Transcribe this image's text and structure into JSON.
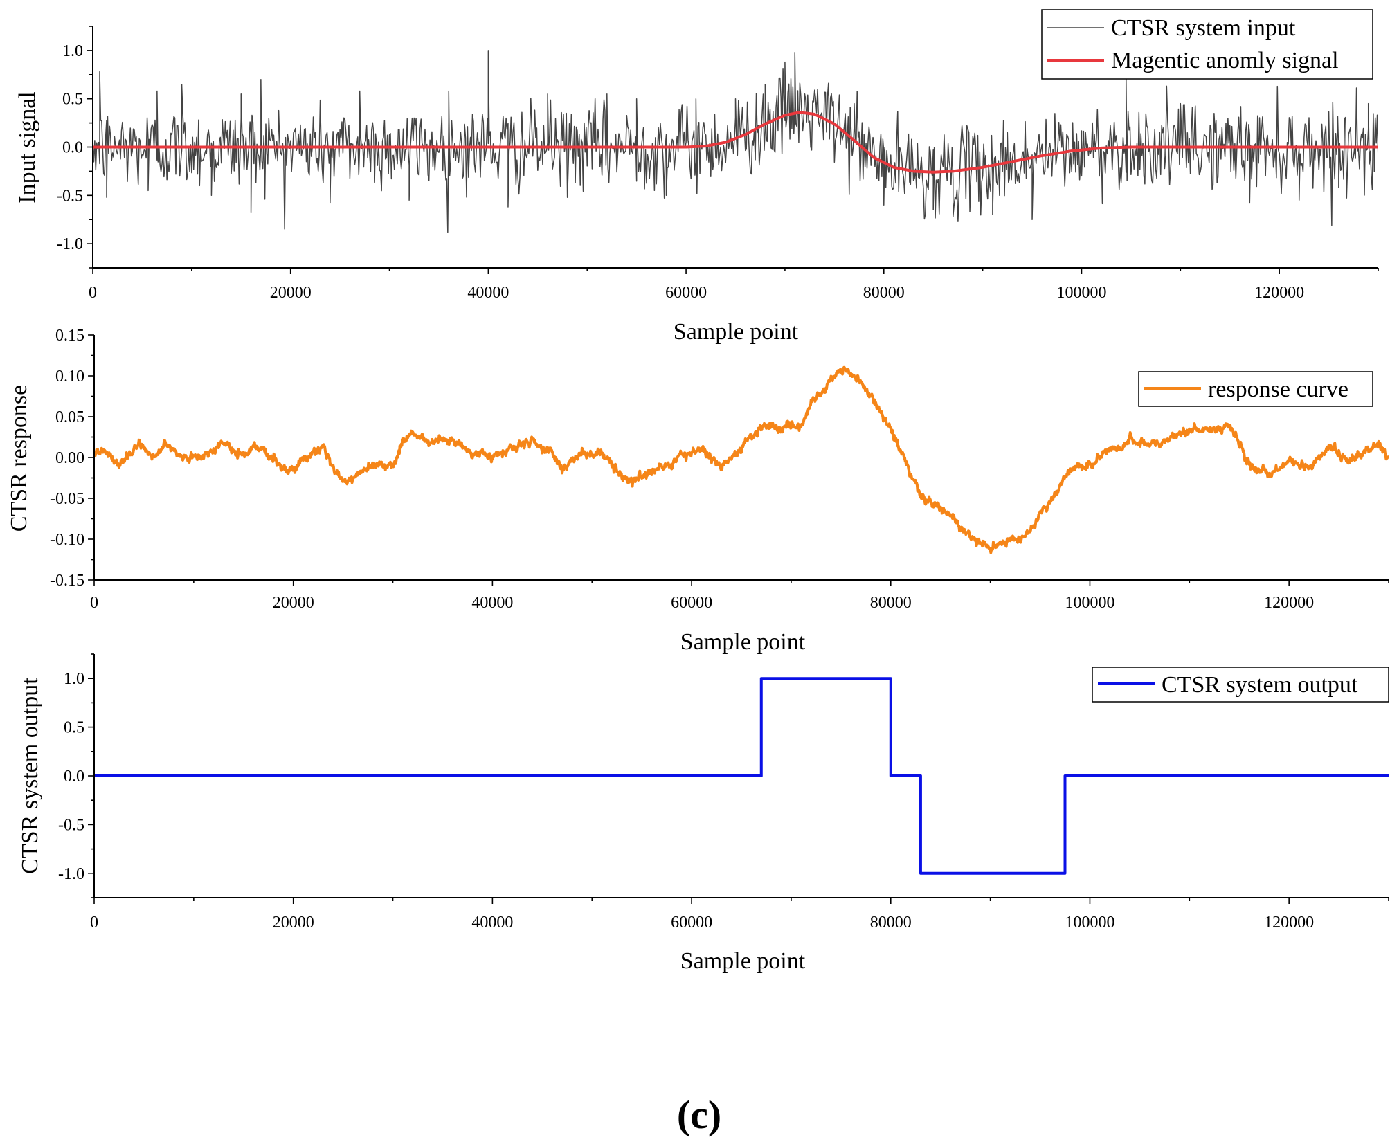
{
  "figure_caption": "(c)",
  "chart_data": [
    {
      "type": "line",
      "id": "input",
      "xlabel": "Sample point",
      "ylabel": "Input signal",
      "xlim": [
        0,
        130000
      ],
      "ylim": [
        -1.25,
        1.25
      ],
      "xticks": [
        0,
        20000,
        40000,
        60000,
        80000,
        100000,
        120000
      ],
      "xtick_labels": [
        "0",
        "20000",
        "40000",
        "60000",
        "80000",
        "100000",
        "120000"
      ],
      "yticks": [
        -1.0,
        -0.5,
        0.0,
        0.5,
        1.0
      ],
      "ytick_labels": [
        "-1.0",
        "-0.5",
        "0.0",
        "0.5",
        "1.0"
      ],
      "legend_position": "top-right",
      "series": [
        {
          "name": "CTSR system input",
          "color": "#444444",
          "noise_sd": 0.21,
          "trend_from": "Magentic anomly signal",
          "points": [
            [
              0,
              0.05
            ],
            [
              700,
              0.78
            ],
            [
              1400,
              -0.52
            ],
            [
              5600,
              -0.45
            ],
            [
              6500,
              0.58
            ],
            [
              9000,
              0.65
            ],
            [
              12000,
              -0.5
            ],
            [
              15000,
              0.55
            ],
            [
              16000,
              -0.68
            ],
            [
              17000,
              0.7
            ],
            [
              24000,
              -0.58
            ],
            [
              27000,
              0.58
            ],
            [
              32000,
              -0.55
            ],
            [
              36000,
              0.58
            ],
            [
              40000,
              1.0
            ],
            [
              42000,
              -0.62
            ],
            [
              46000,
              0.55
            ],
            [
              52000,
              0.55
            ],
            [
              55000,
              0.5
            ],
            [
              58000,
              -0.5
            ],
            [
              61000,
              0.5
            ],
            [
              65000,
              0.5
            ],
            [
              68000,
              0.65
            ],
            [
              70000,
              0.88
            ],
            [
              71000,
              0.98
            ],
            [
              72000,
              0.55
            ],
            [
              77000,
              0.45
            ],
            [
              80000,
              -0.6
            ],
            [
              85000,
              -0.65
            ],
            [
              87000,
              -0.72
            ],
            [
              91000,
              -0.7
            ],
            [
              95000,
              -0.75
            ],
            [
              100000,
              -0.3
            ],
            [
              104500,
              0.75
            ],
            [
              110000,
              0.45
            ],
            [
              117000,
              -0.58
            ],
            [
              122000,
              -0.55
            ],
            [
              126000,
              -0.42
            ],
            [
              129000,
              0.45
            ],
            [
              130000,
              -0.38
            ]
          ]
        },
        {
          "name": "Magentic anomly signal",
          "color": "#e8383d",
          "points": [
            [
              0,
              0.0
            ],
            [
              60000,
              0.0
            ],
            [
              62000,
              0.01
            ],
            [
              64000,
              0.05
            ],
            [
              66000,
              0.13
            ],
            [
              68000,
              0.24
            ],
            [
              70000,
              0.33
            ],
            [
              71500,
              0.36
            ],
            [
              73000,
              0.34
            ],
            [
              75000,
              0.24
            ],
            [
              77000,
              0.07
            ],
            [
              79000,
              -0.11
            ],
            [
              81000,
              -0.21
            ],
            [
              83000,
              -0.25
            ],
            [
              85000,
              -0.26
            ],
            [
              87000,
              -0.25
            ],
            [
              90000,
              -0.21
            ],
            [
              93000,
              -0.15
            ],
            [
              96000,
              -0.09
            ],
            [
              99000,
              -0.04
            ],
            [
              102000,
              -0.01
            ],
            [
              105000,
              0.0
            ],
            [
              130000,
              0.0
            ]
          ]
        }
      ]
    },
    {
      "type": "line",
      "id": "response",
      "xlabel": "Sample point",
      "ylabel": "CTSR response",
      "xlim": [
        0,
        130000
      ],
      "ylim": [
        -0.15,
        0.15
      ],
      "xticks": [
        0,
        20000,
        40000,
        60000,
        80000,
        100000,
        120000
      ],
      "xtick_labels": [
        "0",
        "20000",
        "40000",
        "60000",
        "80000",
        "100000",
        "120000"
      ],
      "yticks": [
        -0.15,
        -0.1,
        -0.05,
        0.0,
        0.05,
        0.1,
        0.15
      ],
      "ytick_labels": [
        "-0.15",
        "-0.10",
        "-0.05",
        "0.00",
        "0.05",
        "0.10",
        "0.15"
      ],
      "legend_position": "top-right",
      "series": [
        {
          "name": "response curve",
          "color": "#f58518",
          "points": [
            [
              0,
              0.005
            ],
            [
              1000,
              0.008
            ],
            [
              2500,
              -0.01
            ],
            [
              4500,
              0.018
            ],
            [
              6000,
              0.0
            ],
            [
              7000,
              0.015
            ],
            [
              9000,
              0.0
            ],
            [
              11000,
              0.002
            ],
            [
              13000,
              0.018
            ],
            [
              15000,
              0.0
            ],
            [
              16000,
              0.015
            ],
            [
              18000,
              0.0
            ],
            [
              19500,
              -0.02
            ],
            [
              21000,
              -0.002
            ],
            [
              22000,
              0.005
            ],
            [
              23000,
              0.015
            ],
            [
              24000,
              -0.01
            ],
            [
              25000,
              -0.032
            ],
            [
              26500,
              -0.02
            ],
            [
              28000,
              -0.01
            ],
            [
              30000,
              -0.01
            ],
            [
              31000,
              0.02
            ],
            [
              32000,
              0.03
            ],
            [
              34000,
              0.018
            ],
            [
              36000,
              0.022
            ],
            [
              38000,
              0.005
            ],
            [
              40000,
              0.0
            ],
            [
              42000,
              0.012
            ],
            [
              44000,
              0.02
            ],
            [
              46000,
              0.005
            ],
            [
              47000,
              -0.015
            ],
            [
              49000,
              0.005
            ],
            [
              51000,
              0.005
            ],
            [
              53000,
              -0.02
            ],
            [
              54000,
              -0.03
            ],
            [
              56000,
              -0.015
            ],
            [
              58000,
              -0.01
            ],
            [
              59000,
              0.005
            ],
            [
              61000,
              0.01
            ],
            [
              63000,
              -0.01
            ],
            [
              65000,
              0.01
            ],
            [
              67000,
              0.04
            ],
            [
              69000,
              0.035
            ],
            [
              71000,
              0.04
            ],
            [
              72000,
              0.065
            ],
            [
              74000,
              0.095
            ],
            [
              75000,
              0.108
            ],
            [
              76500,
              0.098
            ],
            [
              78000,
              0.075
            ],
            [
              79000,
              0.055
            ],
            [
              80000,
              0.035
            ],
            [
              81000,
              0.01
            ],
            [
              82000,
              -0.02
            ],
            [
              83000,
              -0.045
            ],
            [
              84000,
              -0.055
            ],
            [
              86000,
              -0.07
            ],
            [
              87000,
              -0.085
            ],
            [
              89000,
              -0.105
            ],
            [
              90000,
              -0.113
            ],
            [
              91000,
              -0.105
            ],
            [
              93000,
              -0.1
            ],
            [
              94000,
              -0.09
            ],
            [
              95000,
              -0.07
            ],
            [
              96000,
              -0.055
            ],
            [
              97000,
              -0.035
            ],
            [
              98000,
              -0.015
            ],
            [
              100000,
              -0.01
            ],
            [
              101000,
              0.005
            ],
            [
              103000,
              0.01
            ],
            [
              104000,
              0.02
            ],
            [
              106000,
              0.015
            ],
            [
              108000,
              0.022
            ],
            [
              110000,
              0.035
            ],
            [
              112000,
              0.035
            ],
            [
              114000,
              0.035
            ],
            [
              115000,
              0.02
            ],
            [
              116000,
              -0.01
            ],
            [
              118000,
              -0.02
            ],
            [
              120000,
              -0.005
            ],
            [
              122000,
              -0.015
            ],
            [
              124000,
              0.015
            ],
            [
              126000,
              -0.005
            ],
            [
              128000,
              0.008
            ],
            [
              129000,
              0.018
            ],
            [
              130000,
              0.0
            ]
          ]
        }
      ]
    },
    {
      "type": "line",
      "id": "output",
      "xlabel": "Sample point",
      "ylabel": "CTSR system output",
      "xlim": [
        0,
        130000
      ],
      "ylim": [
        -1.25,
        1.25
      ],
      "xticks": [
        0,
        20000,
        40000,
        60000,
        80000,
        100000,
        120000
      ],
      "xtick_labels": [
        "0",
        "20000",
        "40000",
        "60000",
        "80000",
        "100000",
        "120000"
      ],
      "yticks": [
        -1.0,
        -0.5,
        0.0,
        0.5,
        1.0
      ],
      "ytick_labels": [
        "-1.0",
        "-0.5",
        "0.0",
        "0.5",
        "1.0"
      ],
      "legend_position": "top-right",
      "series": [
        {
          "name": "CTSR system output",
          "color": "#0a10e6",
          "points": [
            [
              0,
              0
            ],
            [
              67000,
              0
            ],
            [
              67000,
              1
            ],
            [
              80000,
              1
            ],
            [
              80000,
              0
            ],
            [
              83000,
              0
            ],
            [
              83000,
              -1
            ],
            [
              97500,
              -1
            ],
            [
              97500,
              0
            ],
            [
              130000,
              0
            ]
          ]
        }
      ]
    }
  ]
}
